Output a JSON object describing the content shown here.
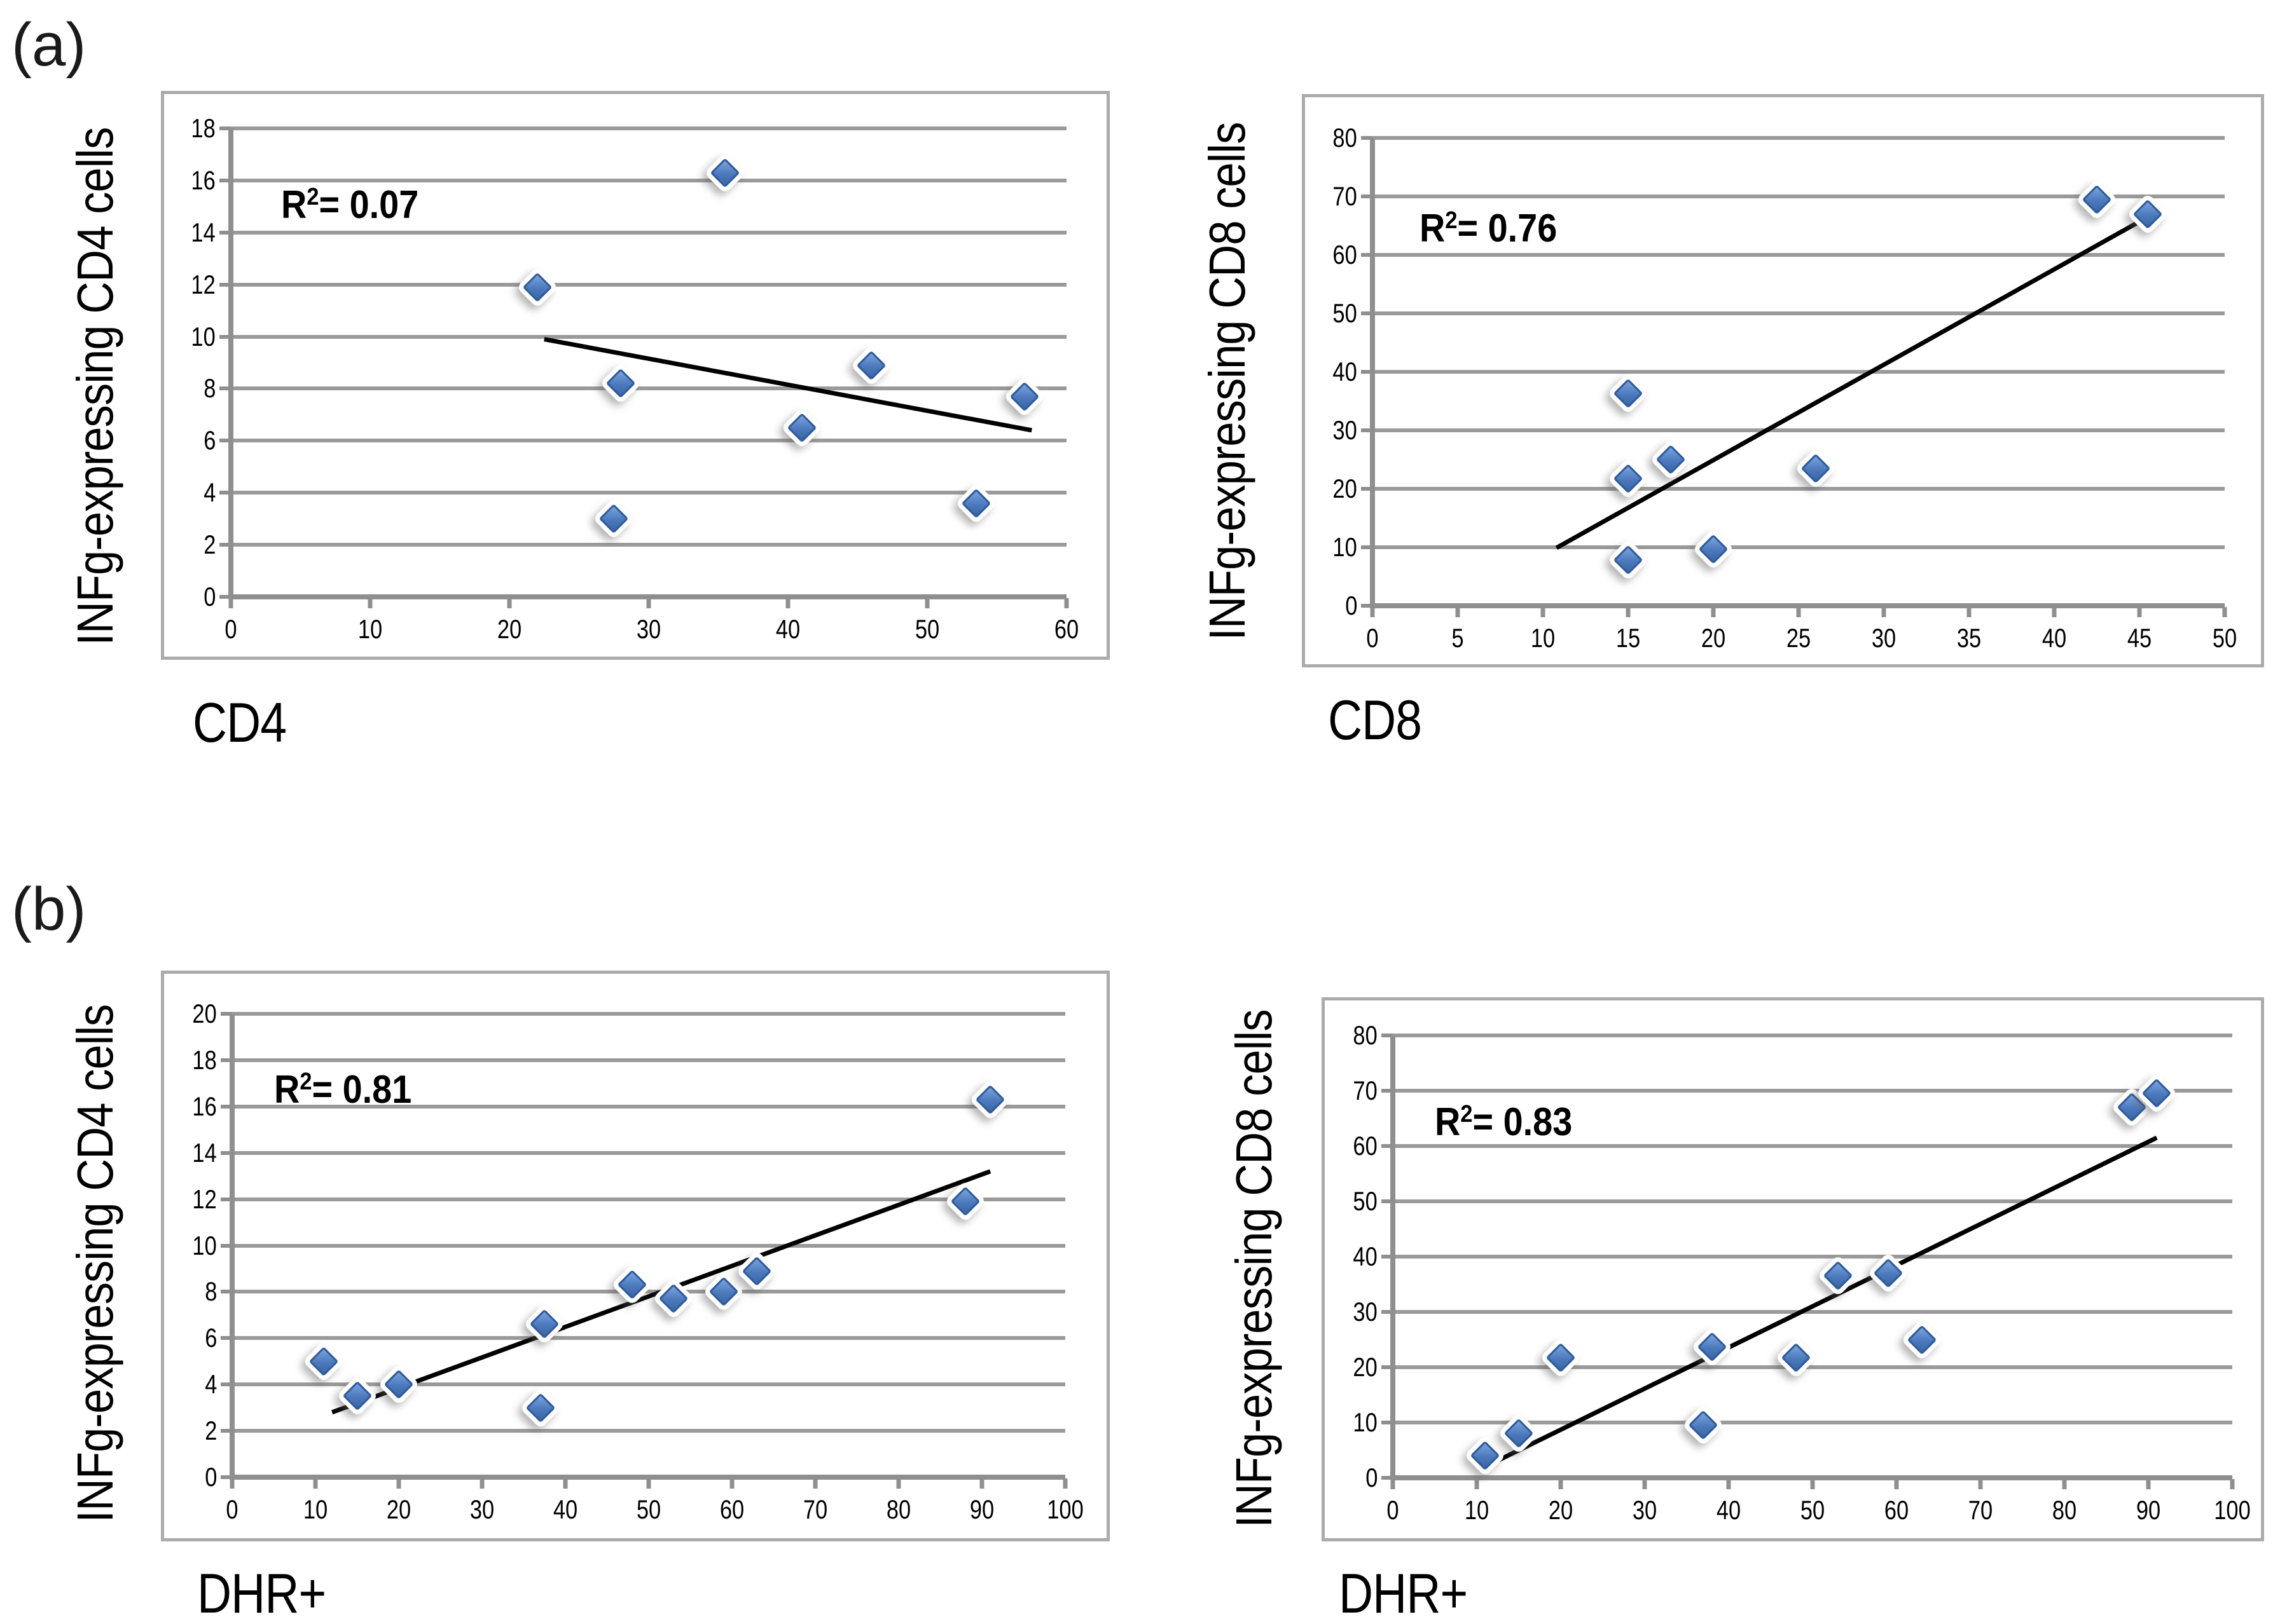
{
  "panels": [
    {
      "label": "(a)"
    },
    {
      "label": "(b)"
    }
  ],
  "colors": {
    "marker_fill_light": "#7BA2DE",
    "marker_fill_mid": "#4B79BC",
    "marker_fill_dark": "#3A66A5",
    "marker_border": "#2F5A9A",
    "trendline": "#000000",
    "gridline": "#9a9a9a",
    "axis": "#8f8f8f",
    "box_border": "#ababab",
    "text": "#000000"
  },
  "chart_data": [
    {
      "type": "scatter",
      "panel": "(a)",
      "title": "",
      "ylabel": "INFg-expressing CD4 cells",
      "xlabel": "CD4",
      "r2_prefix": "R",
      "r2_sup": "2",
      "r2_rest": "= 0.07",
      "xlim": [
        0,
        60
      ],
      "ylim": [
        0,
        18
      ],
      "x_ticks": [
        0,
        10,
        20,
        30,
        40,
        50,
        60
      ],
      "y_ticks": [
        0,
        2,
        4,
        6,
        8,
        10,
        12,
        14,
        16,
        18
      ],
      "grid": "horizontal",
      "legend": "none",
      "points": [
        [
          22,
          11.9
        ],
        [
          27.5,
          3.0
        ],
        [
          28,
          8.2
        ],
        [
          35.5,
          16.3
        ],
        [
          41,
          6.5
        ],
        [
          46,
          8.9
        ],
        [
          53.5,
          3.6
        ],
        [
          57,
          7.7
        ]
      ],
      "trendline": {
        "x1": 22.5,
        "y1": 9.9,
        "x2": 57.5,
        "y2": 6.4
      }
    },
    {
      "type": "scatter",
      "panel": "(a)",
      "title": "",
      "ylabel": "INFg-expressing CD8 cells",
      "xlabel": "CD8",
      "r2_prefix": "R",
      "r2_sup": "2",
      "r2_rest": "= 0.76",
      "xlim": [
        0,
        50
      ],
      "ylim": [
        0,
        80
      ],
      "x_ticks": [
        0,
        5,
        10,
        15,
        20,
        25,
        30,
        35,
        40,
        45,
        50
      ],
      "y_ticks": [
        0,
        10,
        20,
        30,
        40,
        50,
        60,
        70,
        80
      ],
      "grid": "horizontal",
      "legend": "none",
      "points": [
        [
          15,
          36.3
        ],
        [
          15,
          21.7
        ],
        [
          15,
          7.8
        ],
        [
          17.5,
          25
        ],
        [
          20,
          9.7
        ],
        [
          26,
          23.5
        ],
        [
          42.5,
          69.5
        ],
        [
          45.5,
          67
        ]
      ],
      "trendline": {
        "x1": 10.8,
        "y1": 9.9,
        "x2": 45.5,
        "y2": 66.5
      }
    },
    {
      "type": "scatter",
      "panel": "(b)",
      "title": "",
      "ylabel": "INFg-expressing CD4 cells",
      "xlabel": "DHR+",
      "r2_prefix": "R",
      "r2_sup": "2",
      "r2_rest": "= 0.81",
      "xlim": [
        0,
        100
      ],
      "ylim": [
        0,
        20
      ],
      "x_ticks": [
        0,
        10,
        20,
        30,
        40,
        50,
        60,
        70,
        80,
        90,
        100
      ],
      "y_ticks": [
        0,
        2,
        4,
        6,
        8,
        10,
        12,
        14,
        16,
        18,
        20
      ],
      "grid": "horizontal",
      "legend": "none",
      "points": [
        [
          11,
          5.0
        ],
        [
          15,
          3.5
        ],
        [
          20,
          4.0
        ],
        [
          37,
          3.0
        ],
        [
          37.5,
          6.6
        ],
        [
          48,
          8.3
        ],
        [
          53,
          7.7
        ],
        [
          59,
          8.0
        ],
        [
          63,
          8.9
        ],
        [
          88,
          11.9
        ],
        [
          91,
          16.3
        ]
      ],
      "trendline": {
        "x1": 12,
        "y1": 2.8,
        "x2": 91,
        "y2": 13.2
      }
    },
    {
      "type": "scatter",
      "panel": "(b)",
      "title": "",
      "ylabel": "INFg-expressing CD8 cells",
      "xlabel": "DHR+",
      "r2_prefix": "R",
      "r2_sup": "2",
      "r2_rest": "= 0.83",
      "xlim": [
        0,
        100
      ],
      "ylim": [
        0,
        80
      ],
      "x_ticks": [
        0,
        10,
        20,
        30,
        40,
        50,
        60,
        70,
        80,
        90,
        100
      ],
      "y_ticks": [
        0,
        10,
        20,
        30,
        40,
        50,
        60,
        70,
        80
      ],
      "grid": "horizontal",
      "legend": "none",
      "points": [
        [
          11,
          4.0
        ],
        [
          15,
          8.0
        ],
        [
          20,
          21.7
        ],
        [
          37,
          9.5
        ],
        [
          38,
          23.7
        ],
        [
          48,
          21.7
        ],
        [
          53,
          36.5
        ],
        [
          59,
          37.0
        ],
        [
          63,
          25.0
        ],
        [
          88,
          67.0
        ],
        [
          91,
          69.5
        ]
      ],
      "trendline": {
        "x1": 11.4,
        "y1": 2.3,
        "x2": 91,
        "y2": 61.5
      }
    }
  ]
}
